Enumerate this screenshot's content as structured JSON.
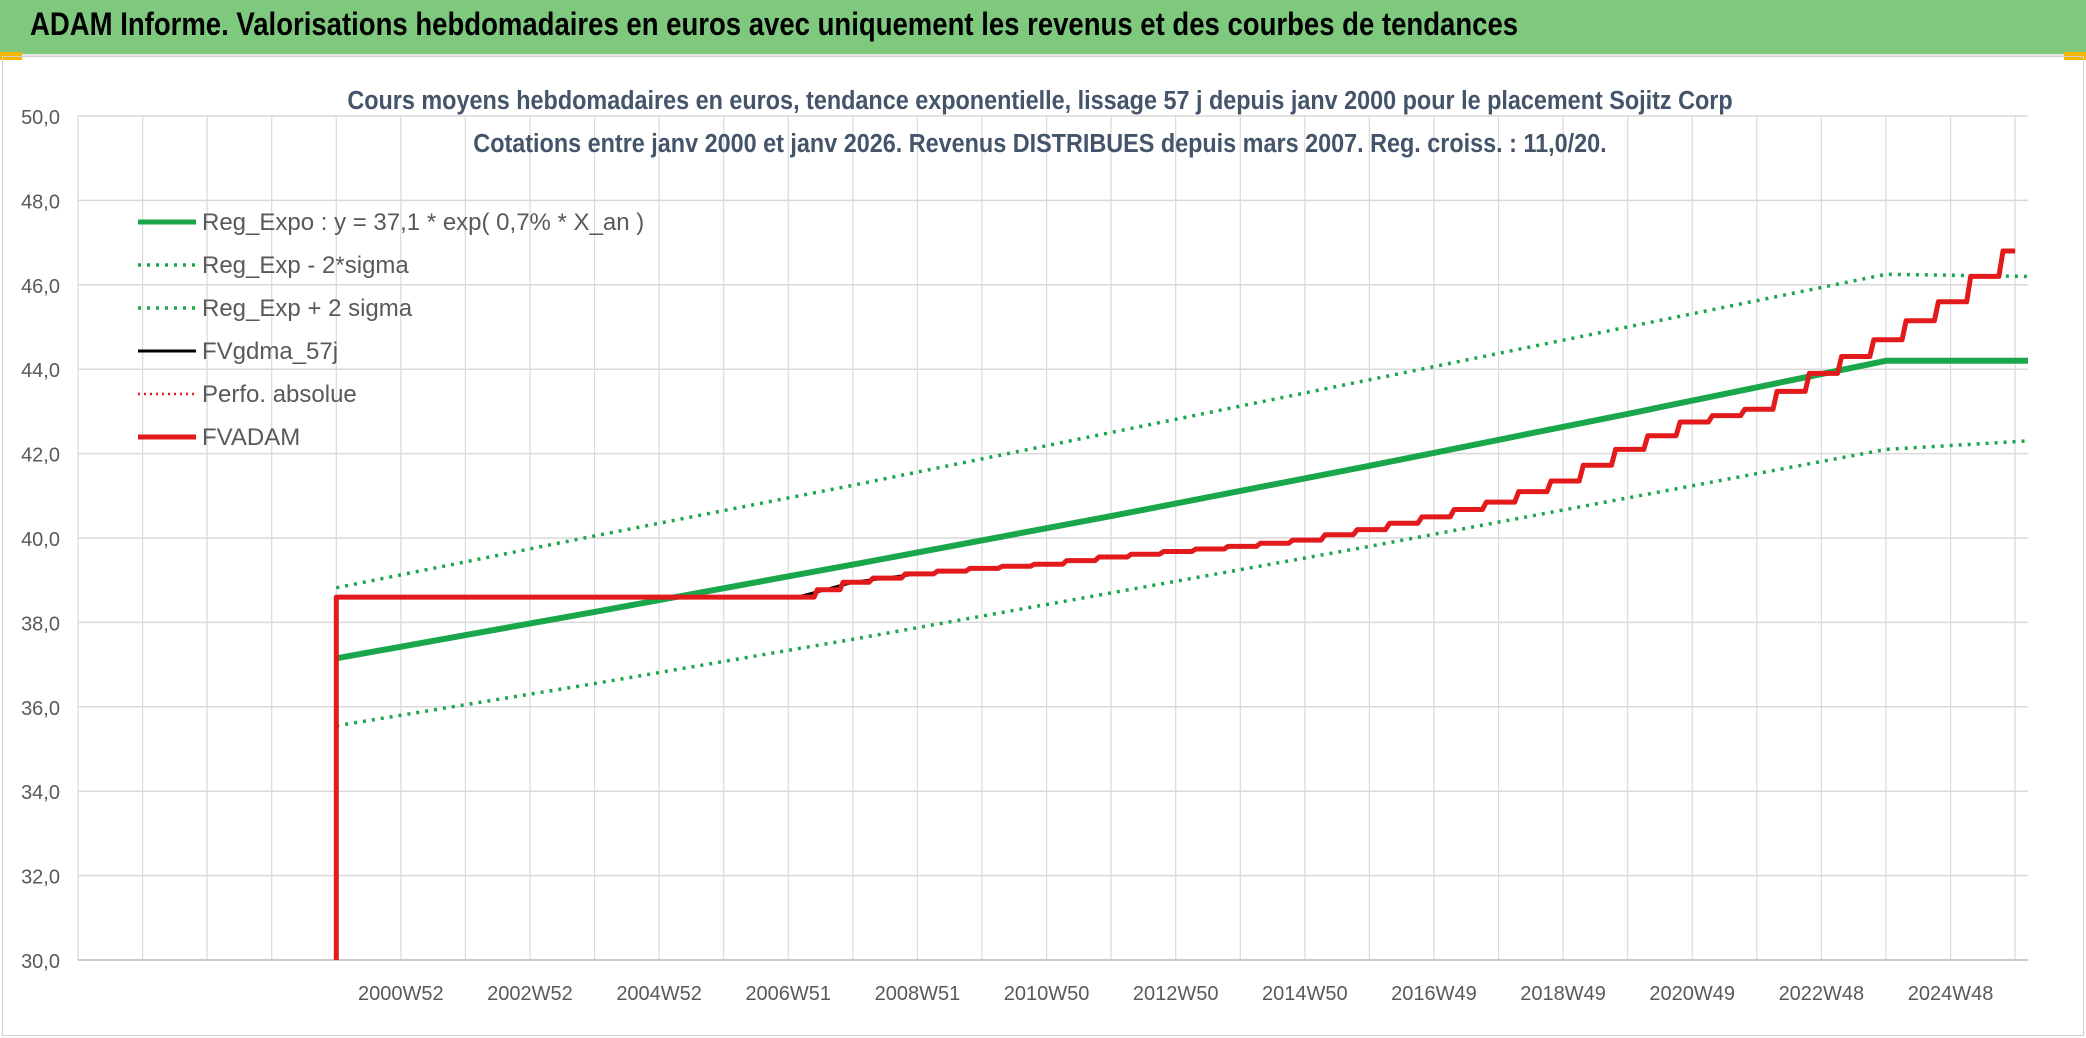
{
  "header": {
    "title": "ADAM Informe. Valorisations hebdomadaires en euros avec uniquement les revenus et des courbes de tendances"
  },
  "colors": {
    "header_bg": "#7fc97f",
    "reg_expo": "#1aa64b",
    "reg_sigma": "#1aa64b",
    "fvgdma": "#000000",
    "perfo": "#e31a1c",
    "fvadam": "#e31a1c",
    "grid": "#d9d9d9",
    "axis_text": "#595959",
    "title_text": "#44546a"
  },
  "chart_data": {
    "type": "line",
    "title": "Cours moyens hebdomadaires en euros, tendance exponentielle, lissage 57 j depuis janv 2000 pour le placement Sojitz Corp",
    "subtitle": "Cotations entre janv 2000 et janv 2026. Revenus DISTRIBUES depuis mars 2007. Reg. croiss. : 11,0/20.",
    "xlabel": "",
    "ylabel": "",
    "ylim": [
      30,
      50
    ],
    "xlim": [
      1996.0,
      2026.2
    ],
    "y_ticks": [
      "30,0",
      "32,0",
      "34,0",
      "36,0",
      "38,0",
      "40,0",
      "42,0",
      "44,0",
      "46,0",
      "48,0",
      "50,0"
    ],
    "x_ticks": [
      {
        "label": "2000W52",
        "x": 2001.0
      },
      {
        "label": "2002W52",
        "x": 2003.0
      },
      {
        "label": "2004W52",
        "x": 2005.0
      },
      {
        "label": "2006W51",
        "x": 2007.0
      },
      {
        "label": "2008W51",
        "x": 2009.0
      },
      {
        "label": "2010W50",
        "x": 2011.0
      },
      {
        "label": "2012W50",
        "x": 2013.0
      },
      {
        "label": "2014W50",
        "x": 2015.0
      },
      {
        "label": "2016W49",
        "x": 2017.0
      },
      {
        "label": "2018W49",
        "x": 2019.0
      },
      {
        "label": "2020W49",
        "x": 2021.0
      },
      {
        "label": "2022W48",
        "x": 2023.0
      },
      {
        "label": "2024W48",
        "x": 2025.0
      }
    ],
    "grid": true,
    "legend_position": "top-left",
    "series": [
      {
        "name": "Reg_Expo : y = 37,1 * exp( 0,7% *  X_an )",
        "style": "solid-thick",
        "x": [
          2000.0,
          2004.0,
          2008.0,
          2012.0,
          2016.0,
          2020.0,
          2024.0,
          2026.2
        ],
        "y": [
          37.15,
          38.25,
          39.37,
          40.52,
          41.71,
          42.94,
          44.2,
          44.2
        ]
      },
      {
        "name": "Reg_Exp - 2*sigma",
        "style": "dotted",
        "x": [
          2000.0,
          2004.0,
          2008.0,
          2012.0,
          2016.0,
          2020.0,
          2024.0,
          2026.2
        ],
        "y": [
          35.55,
          36.55,
          37.6,
          38.7,
          39.8,
          40.95,
          42.1,
          42.3
        ]
      },
      {
        "name": "Reg_Exp + 2 sigma",
        "style": "dotted",
        "x": [
          2000.0,
          2004.0,
          2008.0,
          2012.0,
          2016.0,
          2020.0,
          2024.0,
          2026.2
        ],
        "y": [
          38.82,
          40.05,
          41.25,
          42.5,
          43.75,
          45.0,
          46.25,
          46.2
        ]
      },
      {
        "name": "FVgdma_57j",
        "style": "solid",
        "x": [
          2007.2,
          2008.0,
          2009.0,
          2010.0,
          2011.0,
          2012.0,
          2013.0,
          2014.0,
          2015.0,
          2016.0,
          2017.0,
          2018.0,
          2019.0,
          2020.0,
          2021.0,
          2022.0,
          2023.0,
          2024.0,
          2025.0,
          2026.0
        ],
        "y": [
          38.62,
          38.95,
          39.15,
          39.28,
          39.38,
          39.55,
          39.68,
          39.8,
          39.95,
          40.2,
          40.5,
          40.85,
          41.35,
          42.1,
          42.75,
          43.05,
          43.9,
          44.7,
          45.6,
          46.8
        ]
      },
      {
        "name": "Perfo. absolue",
        "style": "dotted",
        "x": [],
        "y": []
      },
      {
        "name": "FVADAM",
        "style": "solid-thick",
        "x": [
          2000.0,
          2000.0,
          2007.2,
          2008.0,
          2009.0,
          2010.0,
          2011.0,
          2012.0,
          2013.0,
          2014.0,
          2015.0,
          2016.0,
          2017.0,
          2018.0,
          2019.0,
          2020.0,
          2021.0,
          2022.0,
          2023.0,
          2024.0,
          2025.0,
          2026.0
        ],
        "y": [
          30.0,
          38.6,
          38.6,
          38.95,
          39.15,
          39.28,
          39.38,
          39.55,
          39.68,
          39.8,
          39.95,
          40.2,
          40.5,
          40.85,
          41.35,
          42.1,
          42.75,
          43.05,
          43.9,
          44.7,
          45.6,
          46.8
        ]
      }
    ]
  }
}
